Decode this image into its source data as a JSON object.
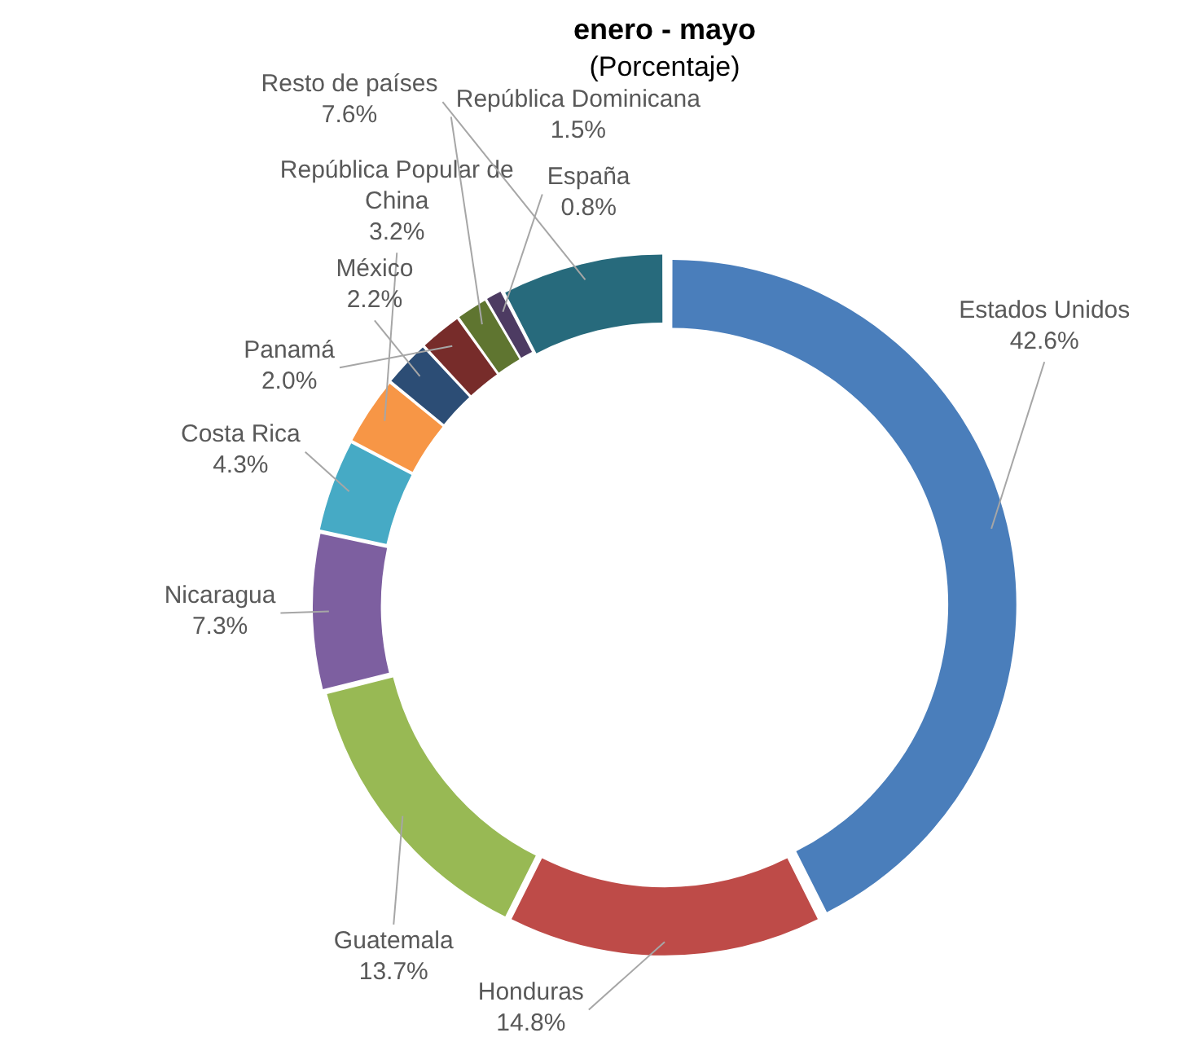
{
  "chart_data": {
    "type": "donut",
    "title": "enero - mayo",
    "subtitle": "(Porcentaje)",
    "categories": [
      "Estados Unidos",
      "Honduras",
      "Guatemala",
      "Nicaragua",
      "Costa Rica",
      "República Popular de China",
      "México",
      "Panamá",
      "República Dominicana",
      "España",
      "Resto de países"
    ],
    "values": [
      42.6,
      14.8,
      13.7,
      7.3,
      4.3,
      3.2,
      2.2,
      2.0,
      1.5,
      0.8,
      7.6
    ],
    "value_labels": [
      "42.6%",
      "14.8%",
      "13.7%",
      "7.3%",
      "4.3%",
      "3.2%",
      "2.2%",
      "2.0%",
      "1.5%",
      "0.8%",
      "7.6%"
    ],
    "colors": [
      "#4a7ebb",
      "#be4b48",
      "#98b954",
      "#7d5fa0",
      "#46aac5",
      "#f79646",
      "#2c4d75",
      "#772c2a",
      "#5f7530",
      "#4d3b62",
      "#276a7c"
    ],
    "legend": false
  }
}
